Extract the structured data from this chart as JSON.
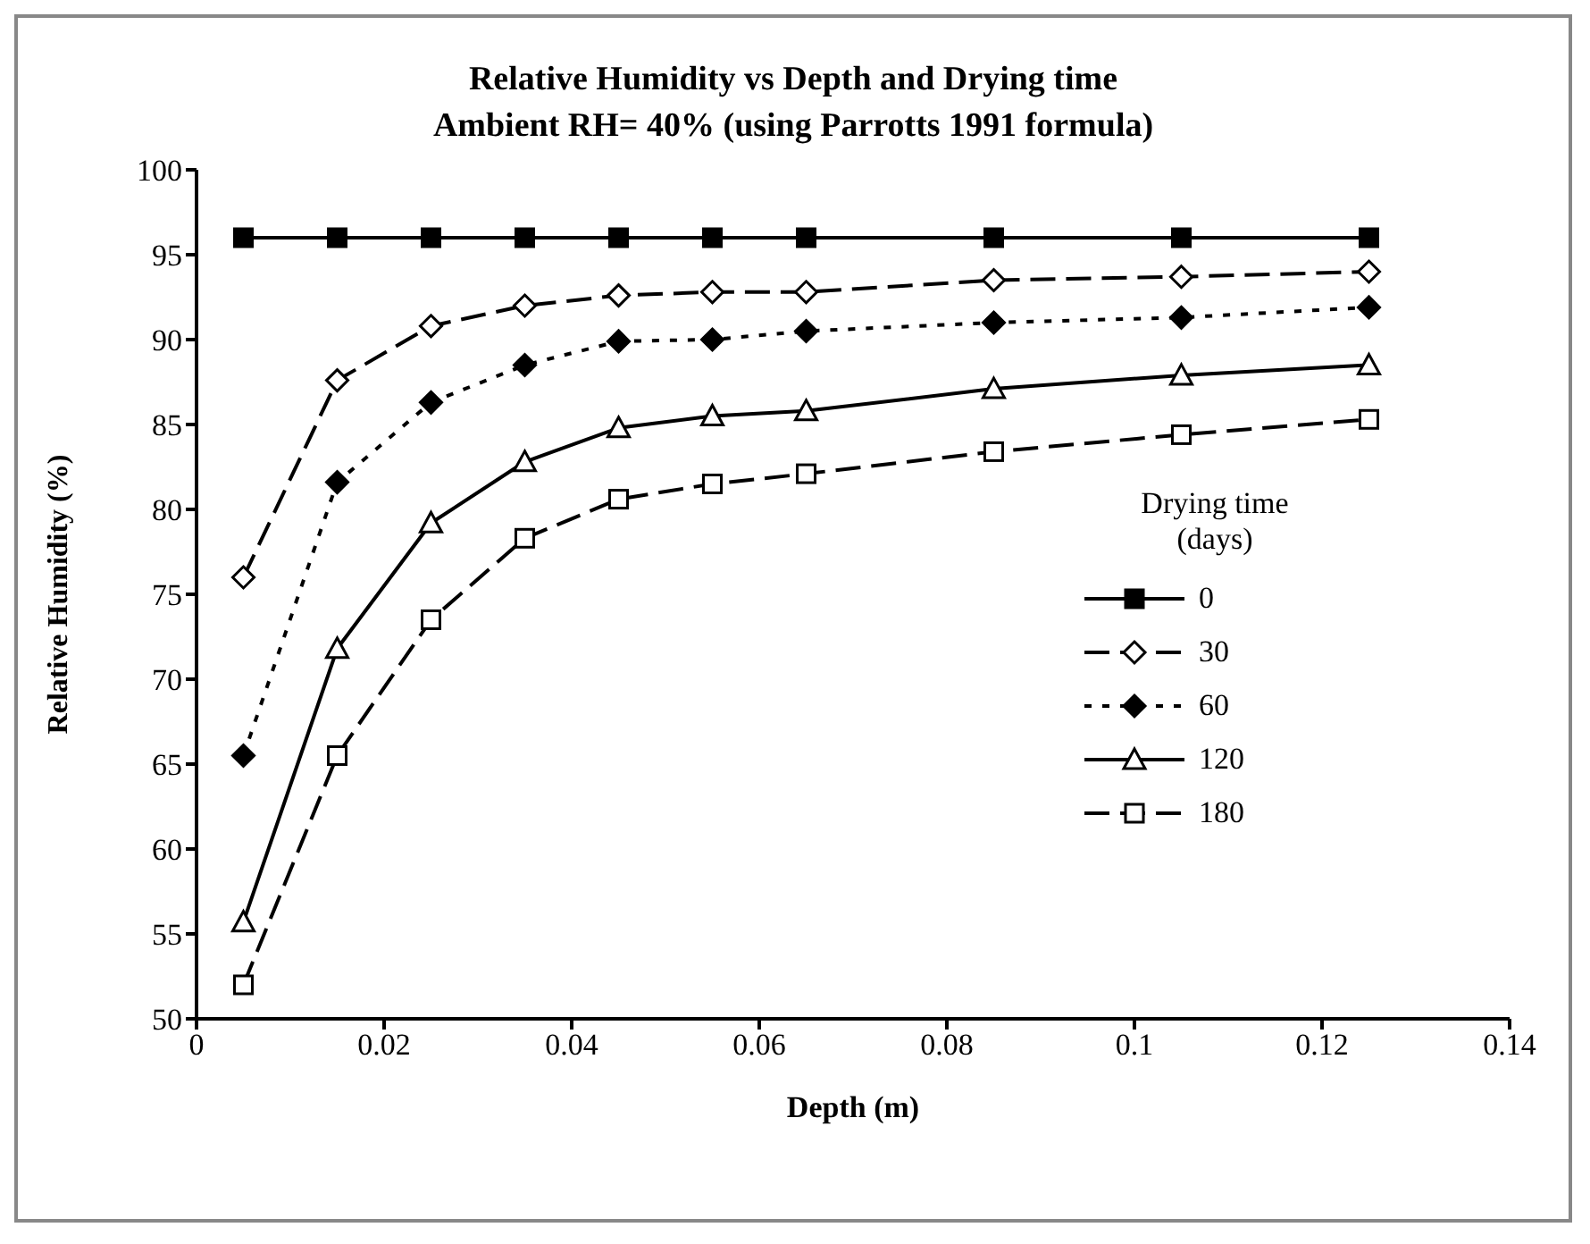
{
  "chart_data": {
    "type": "line",
    "title": "Relative Humidity vs Depth and Drying time",
    "subtitle": "Ambient RH= 40%  (using Parrotts 1991 formula)",
    "xlabel": "Depth (m)",
    "ylabel": "Relative Humidity (%)",
    "legend_title": "Drying time\n(days)",
    "legend": "right",
    "x": [
      0.005,
      0.015,
      0.025,
      0.035,
      0.045,
      0.055,
      0.065,
      0.085,
      0.105,
      0.125
    ],
    "xlim": [
      0,
      0.14
    ],
    "xticks": [
      0,
      0.02,
      0.04,
      0.06,
      0.08,
      0.1,
      0.12,
      0.14
    ],
    "ylim": [
      50,
      100
    ],
    "yticks": [
      50,
      55,
      60,
      65,
      70,
      75,
      80,
      85,
      90,
      95,
      100
    ],
    "grid": false,
    "series": [
      {
        "name": "0",
        "color": "#000000",
        "marker": "square",
        "line_style": "solid",
        "values": [
          96,
          96,
          96,
          96,
          96,
          96,
          96,
          96,
          96,
          96
        ]
      },
      {
        "name": "30",
        "color": "#000000",
        "marker": "diamond",
        "line_style": "dashed",
        "values": [
          76,
          87.6,
          90.8,
          92,
          92.6,
          92.8,
          92.8,
          93.5,
          93.7,
          94
        ]
      },
      {
        "name": "60",
        "color": "#000000",
        "marker": "diamond",
        "line_style": "dotted",
        "values": [
          65.5,
          81.6,
          86.3,
          88.5,
          89.9,
          90,
          90.5,
          91,
          91.3,
          91.9
        ]
      },
      {
        "name": "120",
        "color": "#000000",
        "marker": "triangle",
        "line_style": "solid",
        "values": [
          55.7,
          71.8,
          79.2,
          82.8,
          84.8,
          85.5,
          85.8,
          87.1,
          87.9,
          88.5
        ]
      },
      {
        "name": "180",
        "color": "#000000",
        "marker": "square",
        "line_style": "dashed",
        "values": [
          52,
          65.5,
          73.5,
          78.3,
          80.6,
          81.5,
          82.1,
          83.4,
          84.4,
          85.3
        ]
      }
    ]
  }
}
